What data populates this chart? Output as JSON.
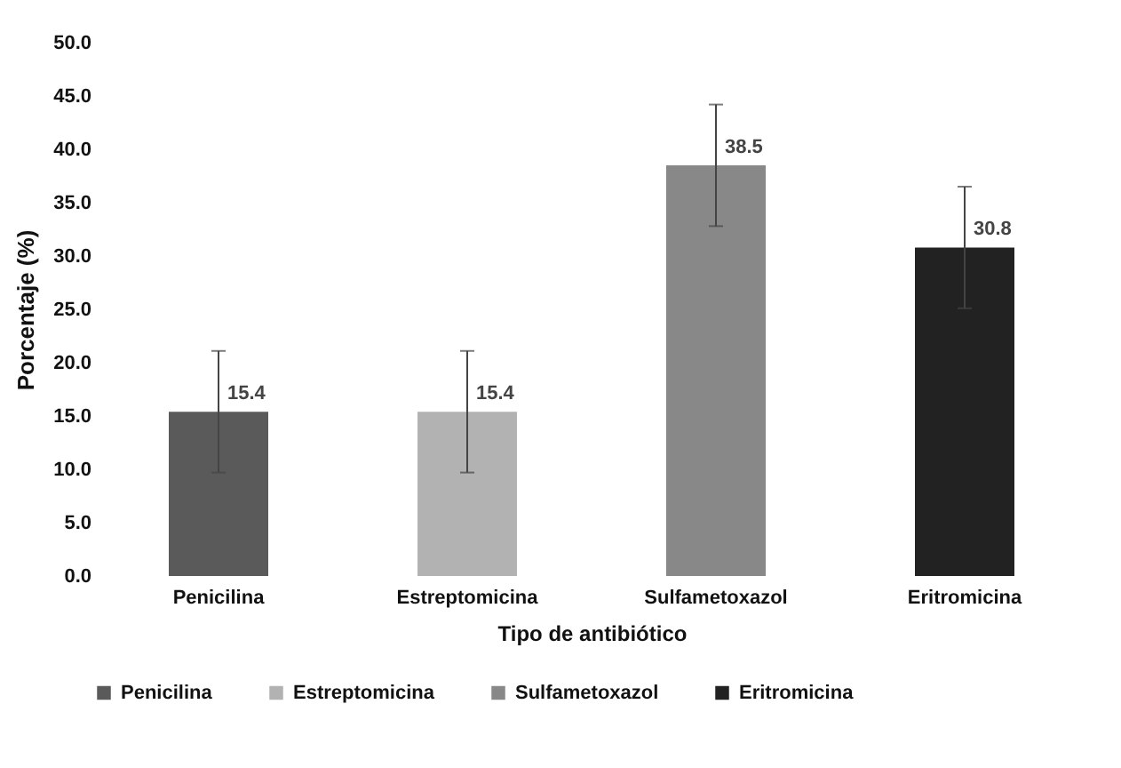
{
  "chart_data": {
    "type": "bar",
    "xlabel": "Tipo de antibiótico",
    "ylabel": "Porcentaje (%)",
    "categories": [
      "Penicilina",
      "Estreptomicina",
      "Sulfametoxazol",
      "Eritromicina"
    ],
    "series": [
      {
        "name": "Penicilina",
        "color": "#5a5a5a",
        "values": [
          15.4,
          null,
          null,
          null
        ],
        "errors": [
          5.7,
          null,
          null,
          null
        ]
      },
      {
        "name": "Estreptomicina",
        "color": "#b2b2b2",
        "values": [
          null,
          15.4,
          null,
          null
        ],
        "errors": [
          null,
          5.7,
          null,
          null
        ]
      },
      {
        "name": "Sulfametoxazol",
        "color": "#888888",
        "values": [
          null,
          null,
          38.5,
          null
        ],
        "errors": [
          null,
          null,
          5.7,
          null
        ]
      },
      {
        "name": "Eritromicina",
        "color": "#222222",
        "values": [
          null,
          null,
          null,
          30.8
        ],
        "errors": [
          null,
          null,
          null,
          5.7
        ]
      }
    ],
    "ylim": [
      0,
      50
    ],
    "yticks": [
      {
        "value": 0,
        "label": "0.0"
      },
      {
        "value": 5,
        "label": "5.0"
      },
      {
        "value": 10,
        "label": "10.0"
      },
      {
        "value": 15,
        "label": "15.0"
      },
      {
        "value": 20,
        "label": "20.0"
      },
      {
        "value": 25,
        "label": "25.0"
      },
      {
        "value": 30,
        "label": "30.0"
      },
      {
        "value": 35,
        "label": "35.0"
      },
      {
        "value": 40,
        "label": "40.0"
      },
      {
        "value": 45,
        "label": "45.0"
      },
      {
        "value": 50,
        "label": "50.0"
      }
    ],
    "data_labels": true,
    "grid": false,
    "legend": "bottom"
  }
}
